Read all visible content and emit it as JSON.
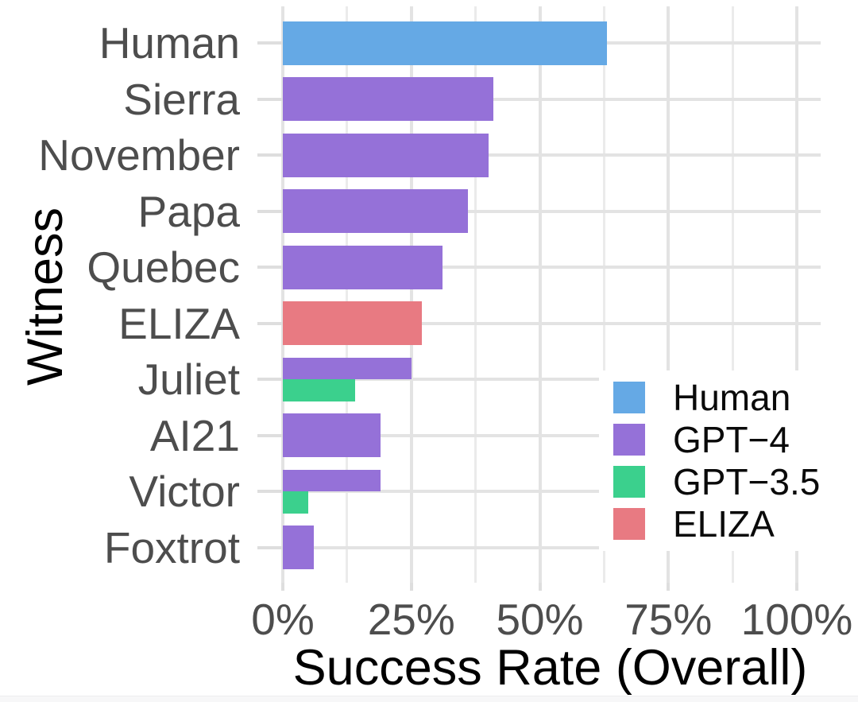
{
  "chart_data": {
    "type": "bar",
    "orientation": "horizontal",
    "title": "",
    "xlabel": "Success Rate (Overall)",
    "ylabel": "Witness",
    "xlim": [
      0,
      105
    ],
    "grid": true,
    "reference_line_x": 50,
    "legend_position": "inside-right",
    "x_ticks": [
      {
        "value": 0,
        "label": "0%"
      },
      {
        "value": 25,
        "label": "25%"
      },
      {
        "value": 50,
        "label": "50%"
      },
      {
        "value": 75,
        "label": "75%"
      },
      {
        "value": 100,
        "label": "100%"
      }
    ],
    "x_minor_ticks": [
      12.5,
      37.5,
      62.5,
      87.5
    ],
    "series_colors": {
      "Human": "#65A9E5",
      "GPT-4": "#9571D8",
      "GPT-3.5": "#3BD08D",
      "ELIZA": "#E87A82"
    },
    "legend": [
      {
        "series": "Human",
        "label": "Human"
      },
      {
        "series": "GPT-4",
        "label": "GPT−4"
      },
      {
        "series": "GPT-3.5",
        "label": "GPT−3.5"
      },
      {
        "series": "ELIZA",
        "label": "ELIZA"
      }
    ],
    "rows": [
      {
        "witness": "Human",
        "bars": [
          {
            "series": "Human",
            "value": 63
          }
        ]
      },
      {
        "witness": "Sierra",
        "bars": [
          {
            "series": "GPT-4",
            "value": 41
          }
        ]
      },
      {
        "witness": "November",
        "bars": [
          {
            "series": "GPT-4",
            "value": 40
          }
        ]
      },
      {
        "witness": "Papa",
        "bars": [
          {
            "series": "GPT-4",
            "value": 36
          }
        ]
      },
      {
        "witness": "Quebec",
        "bars": [
          {
            "series": "GPT-4",
            "value": 31
          }
        ]
      },
      {
        "witness": "ELIZA",
        "bars": [
          {
            "series": "ELIZA",
            "value": 27
          }
        ]
      },
      {
        "witness": "Juliet",
        "bars": [
          {
            "series": "GPT-4",
            "value": 25
          },
          {
            "series": "GPT-3.5",
            "value": 14
          }
        ]
      },
      {
        "witness": "AI21",
        "bars": [
          {
            "series": "GPT-4",
            "value": 19
          }
        ]
      },
      {
        "witness": "Victor",
        "bars": [
          {
            "series": "GPT-4",
            "value": 19
          },
          {
            "series": "GPT-3.5",
            "value": 5
          }
        ]
      },
      {
        "witness": "Foxtrot",
        "bars": [
          {
            "series": "GPT-4",
            "value": 6
          }
        ]
      }
    ]
  }
}
